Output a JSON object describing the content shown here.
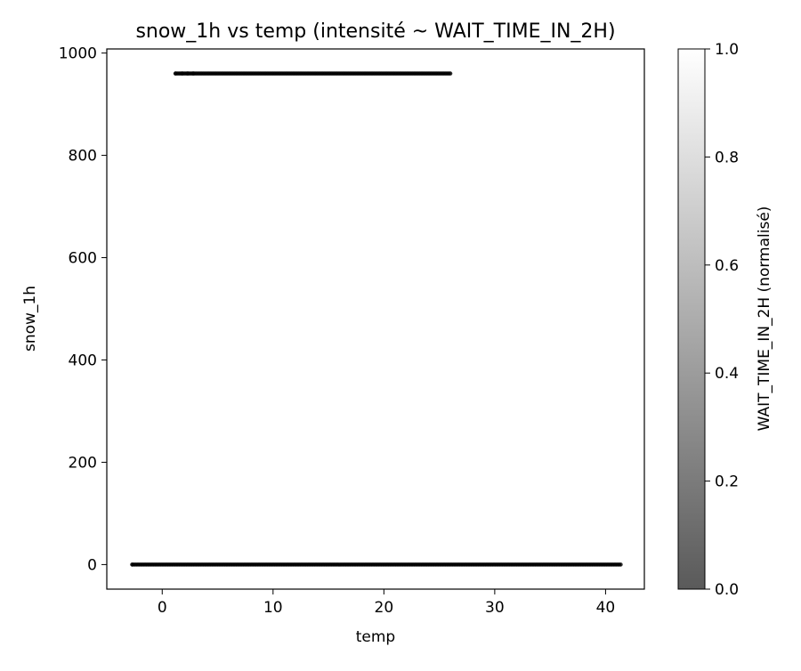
{
  "chart_data": {
    "type": "scatter",
    "title": "snow_1h vs temp (intensité ~ WAIT_TIME_IN_2H)",
    "xlabel": "temp",
    "ylabel": "snow_1h",
    "xlim": [
      -5,
      43.5
    ],
    "ylim": [
      -48,
      1008
    ],
    "xticks": [
      0,
      10,
      20,
      30,
      40
    ],
    "yticks": [
      0,
      200,
      400,
      600,
      800,
      1000
    ],
    "grid": false,
    "marker_color": "#000000",
    "series": [
      {
        "bands": [
          {
            "y": 960,
            "x_range": [
              1.2,
              26.1
            ],
            "intensity": 0.1
          },
          {
            "y": 0,
            "x_range": [
              -2.7,
              41.4
            ],
            "intensity": 0.1
          }
        ],
        "isolated_points": [
          {
            "x": -2.7,
            "y": 0,
            "intensity": 0.4
          },
          {
            "x": 1.2,
            "y": 960,
            "intensity": 0.4
          },
          {
            "x": 1.8,
            "y": 960,
            "intensity": 0.35
          },
          {
            "x": 2.3,
            "y": 960,
            "intensity": 0.3
          },
          {
            "x": 2.8,
            "y": 960,
            "intensity": 0.3
          }
        ]
      }
    ],
    "colorbar": {
      "label": "WAIT_TIME_IN_2H (normalisé)",
      "range": [
        0.0,
        1.0
      ],
      "ticks": [
        0.0,
        0.2,
        0.4,
        0.6,
        0.8,
        1.0
      ],
      "tick_labels": [
        "0.0",
        "0.2",
        "0.4",
        "0.6",
        "0.8",
        "1.0"
      ],
      "color_low": "#5a5a5a",
      "color_high": "#ffffff"
    }
  }
}
